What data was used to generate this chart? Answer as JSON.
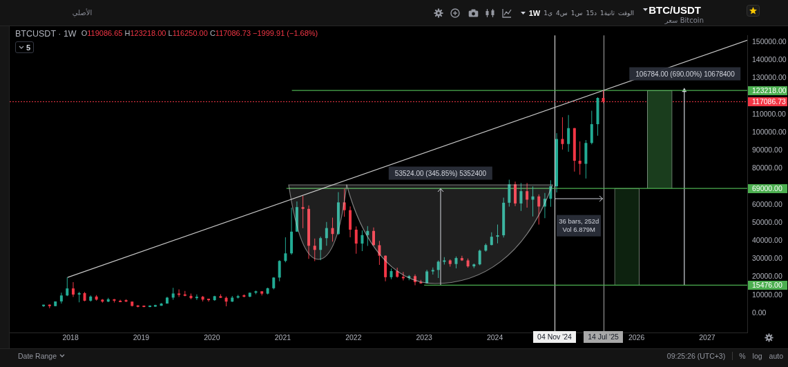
{
  "chart_data": {
    "type": "candlestick",
    "title": "BTC/USDT",
    "subtitle": "سعر Bitcoin",
    "x": [
      "2017-08-15",
      "2017-09-15",
      "2017-10-15",
      "2017-11-15",
      "2017-12-15",
      "2018-01-15",
      "2018-02-15",
      "2018-03-15",
      "2018-04-15",
      "2018-05-15",
      "2018-06-15",
      "2018-07-15",
      "2018-08-15",
      "2018-09-15",
      "2018-10-15",
      "2018-11-15",
      "2018-12-15",
      "2019-01-15",
      "2019-02-15",
      "2019-03-15",
      "2019-04-15",
      "2019-05-15",
      "2019-06-15",
      "2019-07-15",
      "2019-08-15",
      "2019-09-15",
      "2019-10-15",
      "2019-11-15",
      "2019-12-15",
      "2020-01-15",
      "2020-02-15",
      "2020-03-15",
      "2020-04-15",
      "2020-05-15",
      "2020-06-15",
      "2020-07-15",
      "2020-08-15",
      "2020-09-15",
      "2020-10-15",
      "2020-11-15",
      "2020-12-15",
      "2021-01-15",
      "2021-02-15",
      "2021-03-15",
      "2021-04-15",
      "2021-05-15",
      "2021-06-15",
      "2021-07-15",
      "2021-08-15",
      "2021-09-15",
      "2021-10-15",
      "2021-11-15",
      "2021-12-15",
      "2022-01-15",
      "2022-02-15",
      "2022-03-15",
      "2022-04-15",
      "2022-05-15",
      "2022-06-15",
      "2022-07-15",
      "2022-08-15",
      "2022-09-15",
      "2022-10-15",
      "2022-11-15",
      "2022-12-15",
      "2023-01-15",
      "2023-02-15",
      "2023-03-15",
      "2023-04-15",
      "2023-05-15",
      "2023-06-15",
      "2023-07-15",
      "2023-08-15",
      "2023-09-15",
      "2023-10-15",
      "2023-11-15",
      "2023-12-15",
      "2024-01-15",
      "2024-02-15",
      "2024-03-15",
      "2024-04-15",
      "2024-05-15",
      "2024-06-15",
      "2024-07-15",
      "2024-08-15",
      "2024-09-15",
      "2024-10-15",
      "2024-11-15",
      "2024-12-15",
      "2025-01-15",
      "2025-02-15",
      "2025-03-15",
      "2025-04-15",
      "2025-05-15",
      "2025-06-15",
      "2025-07-14"
    ],
    "ohlc": [
      [
        3900,
        4700,
        3400,
        4700
      ],
      [
        4700,
        4900,
        2800,
        3900
      ],
      [
        3900,
        6500,
        3800,
        6500
      ],
      [
        6500,
        11300,
        5300,
        9800
      ],
      [
        9800,
        19800,
        9400,
        13700
      ],
      [
        13700,
        17200,
        9000,
        10300
      ],
      [
        10300,
        11800,
        6000,
        11100
      ],
      [
        11100,
        11700,
        6600,
        6900
      ],
      [
        6900,
        9800,
        6400,
        9200
      ],
      [
        9200,
        10000,
        7000,
        7500
      ],
      [
        7500,
        7800,
        5800,
        6400
      ],
      [
        6400,
        8500,
        6100,
        7700
      ],
      [
        7700,
        7800,
        5900,
        6900
      ],
      [
        6900,
        7400,
        6100,
        6100
      ],
      [
        7200,
        7700,
        6200,
        6400
      ],
      [
        6400,
        6500,
        3700,
        4000
      ],
      [
        4300,
        4400,
        3200,
        3500
      ],
      [
        4200,
        4200,
        3300,
        3400
      ],
      [
        3400,
        4300,
        3300,
        4200
      ],
      [
        3600,
        4700,
        3500,
        4500
      ],
      [
        4100,
        5600,
        4100,
        5300
      ],
      [
        5300,
        9100,
        5300,
        8600
      ],
      [
        8600,
        14000,
        7400,
        10900
      ],
      [
        10900,
        13200,
        9000,
        10100
      ],
      [
        10400,
        12300,
        9300,
        9600
      ],
      [
        9600,
        10900,
        7700,
        8300
      ],
      [
        8300,
        10400,
        7300,
        9100
      ],
      [
        9100,
        9500,
        6500,
        7500
      ],
      [
        8000,
        8000,
        6400,
        7200
      ],
      [
        7200,
        9600,
        6900,
        9400
      ],
      [
        9400,
        10500,
        8400,
        8500
      ],
      [
        8500,
        9200,
        3800,
        6400
      ],
      [
        6400,
        9500,
        6200,
        8600
      ],
      [
        8600,
        10100,
        8100,
        9400
      ],
      [
        9900,
        10400,
        8800,
        9100
      ],
      [
        9100,
        11400,
        8900,
        11300
      ],
      [
        11300,
        12500,
        10500,
        12100
      ],
      [
        12100,
        12100,
        9800,
        10800
      ],
      [
        10800,
        14100,
        10400,
        13800
      ],
      [
        13800,
        19900,
        13200,
        19700
      ],
      [
        19700,
        29300,
        17600,
        28900
      ],
      [
        28900,
        42000,
        28100,
        33100
      ],
      [
        33100,
        58400,
        32300,
        45100
      ],
      [
        45100,
        61800,
        45000,
        58700
      ],
      [
        58700,
        64900,
        47000,
        57700
      ],
      [
        57700,
        59600,
        30000,
        37300
      ],
      [
        37300,
        41300,
        28800,
        35000
      ],
      [
        35000,
        42400,
        29300,
        41500
      ],
      [
        41500,
        50500,
        37300,
        47100
      ],
      [
        47100,
        52900,
        39600,
        43800
      ],
      [
        43800,
        67000,
        43300,
        61300
      ],
      [
        61300,
        69000,
        53300,
        57000
      ],
      [
        57000,
        59100,
        42000,
        46200
      ],
      [
        46200,
        48000,
        32900,
        38500
      ],
      [
        38500,
        45800,
        34300,
        43200
      ],
      [
        43200,
        48200,
        37200,
        45500
      ],
      [
        45500,
        47400,
        37600,
        37600
      ],
      [
        37600,
        40000,
        26700,
        31800
      ],
      [
        31800,
        32000,
        17600,
        19900
      ],
      [
        19900,
        24700,
        18800,
        23300
      ],
      [
        23300,
        25200,
        19600,
        20100
      ],
      [
        20100,
        22800,
        18100,
        19300
      ],
      [
        19400,
        21100,
        18200,
        20500
      ],
      [
        20500,
        21500,
        15476,
        17200
      ],
      [
        17300,
        18400,
        16300,
        16500
      ],
      [
        16500,
        24000,
        16500,
        23100
      ],
      [
        23100,
        25300,
        21400,
        23900
      ],
      [
        23900,
        29200,
        19500,
        28500
      ],
      [
        28400,
        31000,
        26900,
        29200
      ],
      [
        29200,
        29800,
        25800,
        27200
      ],
      [
        27200,
        31400,
        24800,
        30500
      ],
      [
        30500,
        31800,
        28900,
        29200
      ],
      [
        29200,
        30200,
        25200,
        25900
      ],
      [
        25900,
        27500,
        24900,
        27000
      ],
      [
        27000,
        35200,
        26500,
        34600
      ],
      [
        34600,
        38500,
        34100,
        37700
      ],
      [
        37700,
        44700,
        37600,
        42300
      ],
      [
        42300,
        49000,
        38600,
        43100
      ],
      [
        43100,
        63900,
        41900,
        61100
      ],
      [
        61100,
        73800,
        59000,
        71300
      ],
      [
        71300,
        72800,
        59200,
        60700
      ],
      [
        60700,
        72000,
        56600,
        67500
      ],
      [
        67500,
        72000,
        58400,
        62800
      ],
      [
        62800,
        70100,
        53500,
        64600
      ],
      [
        64600,
        65700,
        49000,
        59000
      ],
      [
        59000,
        66500,
        52600,
        63300
      ],
      [
        63300,
        73600,
        58900,
        70200
      ],
      [
        70200,
        99600,
        66800,
        96400
      ],
      [
        96400,
        108400,
        90500,
        93600
      ],
      [
        93600,
        109600,
        89300,
        102400
      ],
      [
        102400,
        102500,
        78300,
        84300
      ],
      [
        84300,
        95000,
        76600,
        82600
      ],
      [
        82600,
        95800,
        74500,
        94200
      ],
      [
        94200,
        112000,
        93400,
        104600
      ],
      [
        104600,
        119500,
        98200,
        119086.65
      ],
      [
        119086.65,
        123218,
        116250,
        117086.73
      ]
    ],
    "colors": [
      "#22ab94",
      "#f23645",
      "#22ab94",
      "#22ab94",
      "#22ab94",
      "#f23645",
      "#22ab94",
      "#f23645",
      "#22ab94",
      "#f23645",
      "#f23645",
      "#22ab94",
      "#f23645",
      "#f23645",
      "#f23645",
      "#f23645",
      "#f23645",
      "#f23645",
      "#22ab94",
      "#22ab94",
      "#22ab94",
      "#22ab94",
      "#22ab94",
      "#f23645",
      "#f23645",
      "#f23645",
      "#22ab94",
      "#f23645",
      "#f23645",
      "#22ab94",
      "#f23645",
      "#f23645",
      "#22ab94",
      "#22ab94",
      "#f23645",
      "#22ab94",
      "#22ab94",
      "#f23645",
      "#22ab94",
      "#22ab94",
      "#22ab94",
      "#22ab94",
      "#22ab94",
      "#22ab94",
      "#f23645",
      "#f23645",
      "#f23645",
      "#22ab94",
      "#22ab94",
      "#f23645",
      "#22ab94",
      "#f23645",
      "#f23645",
      "#f23645",
      "#22ab94",
      "#22ab94",
      "#f23645",
      "#f23645",
      "#f23645",
      "#22ab94",
      "#f23645",
      "#f23645",
      "#22ab94",
      "#f23645",
      "#f23645",
      "#22ab94",
      "#22ab94",
      "#22ab94",
      "#22ab94",
      "#f23645",
      "#22ab94",
      "#f23645",
      "#f23645",
      "#22ab94",
      "#22ab94",
      "#22ab94",
      "#22ab94",
      "#22ab94",
      "#22ab94",
      "#22ab94",
      "#f23645",
      "#22ab94",
      "#f23645",
      "#22ab94",
      "#f23645",
      "#22ab94",
      "#22ab94",
      "#22ab94",
      "#f23645",
      "#22ab94",
      "#f23645",
      "#f23645",
      "#22ab94",
      "#22ab94",
      "#22ab94",
      "#f23645"
    ],
    "series": [
      {
        "type": "line",
        "x": [
          "2017-12-17",
          "2027-07-27"
        ],
        "values": [
          19800,
          151000
        ],
        "color": "#c8c8c8"
      },
      {
        "type": "line",
        "x": [
          "2021-01-20",
          "2027-07-27"
        ],
        "values": [
          69000,
          69000
        ],
        "color": "#4caf50",
        "value_labels": [
          null,
          "69000.00"
        ]
      },
      {
        "type": "line",
        "x": [
          "2021-02-17",
          "2027-07-27"
        ],
        "values": [
          123218,
          123218
        ],
        "color": "#4caf50",
        "value_labels": [
          null,
          "123218.00"
        ]
      },
      {
        "type": "line",
        "x": [
          "2023-01-01",
          "2027-07-27"
        ],
        "values": [
          15476,
          15476
        ],
        "color": "#4caf50",
        "value_labels": [
          null,
          "15476.00"
        ]
      },
      {
        "type": "bar",
        "x": [
          "2025-11-13"
        ],
        "base": [
          15476
        ],
        "values": [
          53524
        ],
        "color": "#0d220f"
      },
      {
        "type": "bar",
        "x": [
          "2026-05-01"
        ],
        "base": [
          69000
        ],
        "values": [
          54218
        ],
        "color": "#1a3d1d"
      },
      {
        "type": "line",
        "x": [
          "2026-09-05",
          "2026-09-05"
        ],
        "values": [
          15476,
          123218
        ],
        "color": "#d1d4dc",
        "marker": "triangle"
      }
    ],
    "xlim": [
      "2017-02-21",
      "2027-07-27"
    ],
    "xticks": [
      {
        "value": "2018",
        "label": "2018"
      },
      {
        "value": "2019",
        "label": "2019"
      },
      {
        "value": "2020",
        "label": "2020"
      },
      {
        "value": "2021",
        "label": "2021"
      },
      {
        "value": "2022",
        "label": "2022"
      },
      {
        "value": "2023",
        "label": "2023"
      },
      {
        "value": "2024",
        "label": "2024"
      },
      {
        "value": "2026",
        "label": "2026"
      },
      {
        "value": "2027",
        "label": "2027"
      }
    ],
    "ylim": [
      -10700,
      153700
    ],
    "yticks": [
      {
        "value": 0,
        "label": "0.00"
      },
      {
        "value": 10000,
        "label": "10000.00"
      },
      {
        "value": 20000,
        "label": "20000.00"
      },
      {
        "value": 30000,
        "label": "30000.00"
      },
      {
        "value": 40000,
        "label": "40000.00"
      },
      {
        "value": 50000,
        "label": "50000.00"
      },
      {
        "value": 60000,
        "label": "60000.00"
      },
      {
        "value": 80000,
        "label": "80000.00"
      },
      {
        "value": 90000,
        "label": "90000.00"
      },
      {
        "value": 100000,
        "label": "100000.00"
      },
      {
        "value": 110000,
        "label": "110000.00"
      },
      {
        "value": 130000,
        "label": "130000.00"
      },
      {
        "value": 140000,
        "label": "140000.00"
      },
      {
        "value": 150000,
        "label": "150000.00"
      }
    ],
    "ref_lines": [
      {
        "axis": "x",
        "value": "2024-11-04",
        "label": "04 Nov '24",
        "color": "#f0f0f0"
      },
      {
        "axis": "x",
        "value": "2025-07-14",
        "label": "14 Jul '25",
        "color": "#a8a8a8"
      },
      {
        "axis": "y",
        "value": 117086.73,
        "label": "117086.73",
        "color": "#f23645",
        "line_style": "dotted"
      }
    ],
    "annotations": [
      "BTCUSDT · 1W",
      "O119086.65 H123218.00 L116250.00 C117086.73 −1999.91 (−1.68%)",
      "5",
      "53524.00 (345.85%) 5352400",
      "106784.00 (690.00%) 10678400",
      "36 bars, 252d",
      "Vol 6.879M",
      "الأصلي",
      "الوقت",
      "1ثانية",
      "15د",
      "1س",
      "4س",
      "1ي",
      "1W",
      "Date Range",
      "09:25:26 (UTC+3)",
      "%",
      "log",
      "auto"
    ]
  }
}
